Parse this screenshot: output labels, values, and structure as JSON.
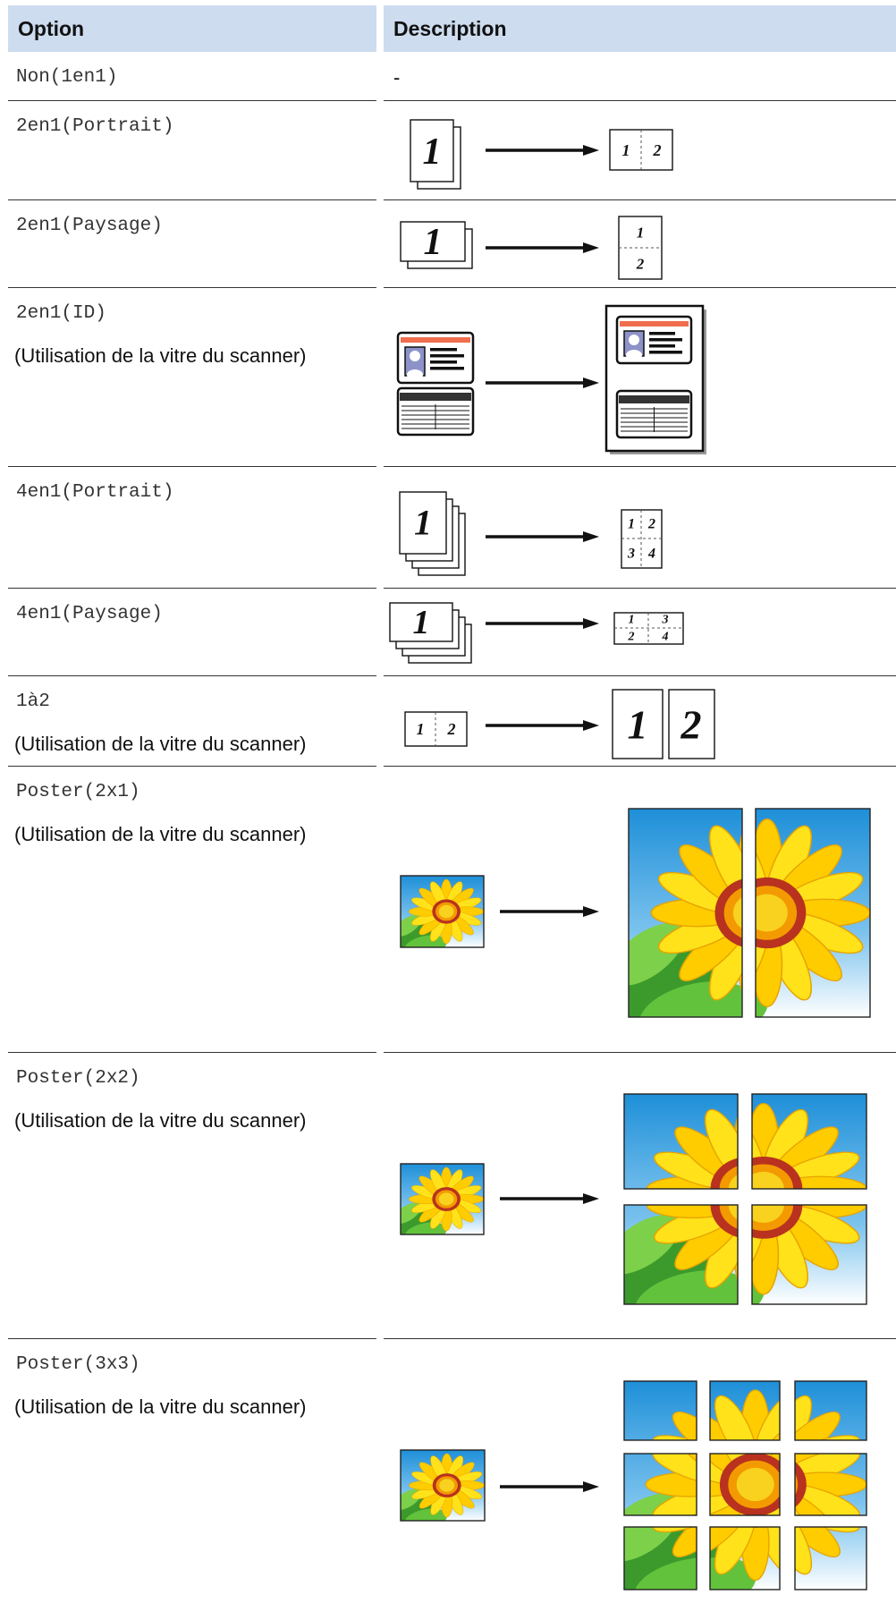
{
  "table": {
    "headers": [
      "Option",
      "Description"
    ],
    "rows": [
      {
        "option": "Non(1en1)",
        "description": "-"
      },
      {
        "option": "2en1(Portrait)",
        "figure": [
          "1",
          "1",
          "2"
        ]
      },
      {
        "option": "2en1(Paysage)",
        "figure": [
          "1",
          "1",
          "2"
        ]
      },
      {
        "option": "2en1(ID)",
        "note": "(Utilisation de la vitre du scanner)"
      },
      {
        "option": "4en1(Portrait)",
        "figure": [
          "1",
          "1",
          "2",
          "3",
          "4"
        ]
      },
      {
        "option": "4en1(Paysage)",
        "figure": [
          "1",
          "1",
          "3",
          "2",
          "4"
        ]
      },
      {
        "option": "1à2",
        "note": "(Utilisation de la vitre du scanner)",
        "figure": [
          "1",
          "2",
          "1",
          "2"
        ]
      },
      {
        "option": "Poster(2x1)",
        "note": "(Utilisation de la vitre du scanner)"
      },
      {
        "option": "Poster(2x2)",
        "note": "(Utilisation de la vitre du scanner)"
      },
      {
        "option": "Poster(3x3)",
        "note": "(Utilisation de la vitre du scanner)"
      }
    ]
  }
}
